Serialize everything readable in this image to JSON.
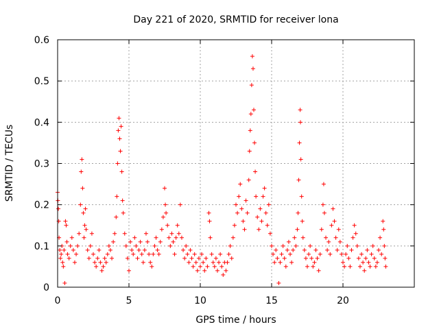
{
  "chart_data": {
    "type": "scatter",
    "title": "Day 221 of 2020, SRMTID for receiver lona",
    "xlabel": "GPS time / hours",
    "ylabel": "SRMTID / TECUs",
    "xlim": [
      0,
      25
    ],
    "ylim": [
      0,
      0.6
    ],
    "xticks": [
      0,
      5,
      10,
      15,
      20
    ],
    "yticks": [
      0,
      0.1,
      0.2,
      0.3,
      0.4,
      0.5,
      0.6
    ],
    "grid": true,
    "marker": "+",
    "color": "#ff0000",
    "series": [
      {
        "name": "SRMTID",
        "points": [
          [
            0.0,
            0.23
          ],
          [
            0.02,
            0.21
          ],
          [
            0.05,
            0.19
          ],
          [
            0.08,
            0.16
          ],
          [
            0.1,
            0.12
          ],
          [
            0.15,
            0.09
          ],
          [
            0.2,
            0.07
          ],
          [
            0.25,
            0.08
          ],
          [
            0.3,
            0.1
          ],
          [
            0.35,
            0.06
          ],
          [
            0.4,
            0.05
          ],
          [
            0.45,
            0.09
          ],
          [
            0.5,
            0.01
          ],
          [
            0.55,
            0.16
          ],
          [
            0.6,
            0.15
          ],
          [
            0.65,
            0.11
          ],
          [
            0.7,
            0.08
          ],
          [
            0.8,
            0.07
          ],
          [
            0.9,
            0.1
          ],
          [
            1.0,
            0.12
          ],
          [
            1.1,
            0.09
          ],
          [
            1.2,
            0.06
          ],
          [
            1.3,
            0.08
          ],
          [
            1.4,
            0.1
          ],
          [
            1.5,
            0.13
          ],
          [
            1.6,
            0.2
          ],
          [
            1.65,
            0.28
          ],
          [
            1.7,
            0.31
          ],
          [
            1.75,
            0.24
          ],
          [
            1.8,
            0.18
          ],
          [
            1.85,
            0.12
          ],
          [
            1.9,
            0.15
          ],
          [
            1.95,
            0.19
          ],
          [
            2.0,
            0.14
          ],
          [
            2.1,
            0.09
          ],
          [
            2.2,
            0.07
          ],
          [
            2.3,
            0.1
          ],
          [
            2.4,
            0.13
          ],
          [
            2.5,
            0.08
          ],
          [
            2.6,
            0.06
          ],
          [
            2.7,
            0.05
          ],
          [
            2.8,
            0.07
          ],
          [
            2.9,
            0.09
          ],
          [
            3.0,
            0.06
          ],
          [
            3.1,
            0.04
          ],
          [
            3.2,
            0.05
          ],
          [
            3.3,
            0.07
          ],
          [
            3.4,
            0.06
          ],
          [
            3.5,
            0.08
          ],
          [
            3.6,
            0.1
          ],
          [
            3.7,
            0.09
          ],
          [
            3.8,
            0.07
          ],
          [
            3.9,
            0.11
          ],
          [
            4.0,
            0.13
          ],
          [
            4.1,
            0.17
          ],
          [
            4.15,
            0.22
          ],
          [
            4.2,
            0.3
          ],
          [
            4.25,
            0.38
          ],
          [
            4.3,
            0.41
          ],
          [
            4.35,
            0.36
          ],
          [
            4.4,
            0.33
          ],
          [
            4.45,
            0.39
          ],
          [
            4.5,
            0.28
          ],
          [
            4.55,
            0.21
          ],
          [
            4.6,
            0.18
          ],
          [
            4.7,
            0.13
          ],
          [
            4.8,
            0.1
          ],
          [
            4.9,
            0.07
          ],
          [
            5.0,
            0.04
          ],
          [
            5.1,
            0.11
          ],
          [
            5.2,
            0.09
          ],
          [
            5.3,
            0.08
          ],
          [
            5.4,
            0.12
          ],
          [
            5.5,
            0.1
          ],
          [
            5.6,
            0.07
          ],
          [
            5.7,
            0.09
          ],
          [
            5.8,
            0.11
          ],
          [
            5.9,
            0.08
          ],
          [
            6.0,
            0.06
          ],
          [
            6.1,
            0.09
          ],
          [
            6.2,
            0.13
          ],
          [
            6.3,
            0.11
          ],
          [
            6.4,
            0.08
          ],
          [
            6.5,
            0.06
          ],
          [
            6.6,
            0.05
          ],
          [
            6.7,
            0.08
          ],
          [
            6.8,
            0.1
          ],
          [
            6.9,
            0.12
          ],
          [
            7.0,
            0.09
          ],
          [
            7.1,
            0.08
          ],
          [
            7.2,
            0.11
          ],
          [
            7.3,
            0.14
          ],
          [
            7.4,
            0.17
          ],
          [
            7.5,
            0.24
          ],
          [
            7.55,
            0.2
          ],
          [
            7.6,
            0.18
          ],
          [
            7.7,
            0.15
          ],
          [
            7.8,
            0.12
          ],
          [
            7.9,
            0.1
          ],
          [
            8.0,
            0.13
          ],
          [
            8.1,
            0.11
          ],
          [
            8.2,
            0.08
          ],
          [
            8.3,
            0.12
          ],
          [
            8.4,
            0.15
          ],
          [
            8.5,
            0.13
          ],
          [
            8.6,
            0.2
          ],
          [
            8.7,
            0.12
          ],
          [
            8.8,
            0.09
          ],
          [
            8.9,
            0.07
          ],
          [
            9.0,
            0.1
          ],
          [
            9.1,
            0.08
          ],
          [
            9.2,
            0.06
          ],
          [
            9.3,
            0.09
          ],
          [
            9.4,
            0.07
          ],
          [
            9.5,
            0.05
          ],
          [
            9.6,
            0.08
          ],
          [
            9.7,
            0.06
          ],
          [
            9.8,
            0.04
          ],
          [
            9.9,
            0.07
          ],
          [
            10.0,
            0.05
          ],
          [
            10.1,
            0.08
          ],
          [
            10.2,
            0.06
          ],
          [
            10.3,
            0.04
          ],
          [
            10.4,
            0.07
          ],
          [
            10.5,
            0.05
          ],
          [
            10.6,
            0.18
          ],
          [
            10.65,
            0.16
          ],
          [
            10.7,
            0.12
          ],
          [
            10.8,
            0.08
          ],
          [
            10.9,
            0.06
          ],
          [
            11.0,
            0.05
          ],
          [
            11.1,
            0.07
          ],
          [
            11.2,
            0.04
          ],
          [
            11.3,
            0.06
          ],
          [
            11.4,
            0.08
          ],
          [
            11.5,
            0.05
          ],
          [
            11.6,
            0.03
          ],
          [
            11.7,
            0.06
          ],
          [
            11.8,
            0.04
          ],
          [
            11.9,
            0.06
          ],
          [
            12.0,
            0.08
          ],
          [
            12.1,
            0.1
          ],
          [
            12.2,
            0.07
          ],
          [
            12.3,
            0.12
          ],
          [
            12.4,
            0.15
          ],
          [
            12.5,
            0.2
          ],
          [
            12.6,
            0.18
          ],
          [
            12.7,
            0.22
          ],
          [
            12.8,
            0.25
          ],
          [
            12.9,
            0.19
          ],
          [
            13.0,
            0.16
          ],
          [
            13.1,
            0.14
          ],
          [
            13.2,
            0.21
          ],
          [
            13.3,
            0.18
          ],
          [
            13.4,
            0.26
          ],
          [
            13.45,
            0.33
          ],
          [
            13.5,
            0.38
          ],
          [
            13.55,
            0.42
          ],
          [
            13.6,
            0.49
          ],
          [
            13.65,
            0.56
          ],
          [
            13.7,
            0.53
          ],
          [
            13.75,
            0.43
          ],
          [
            13.8,
            0.35
          ],
          [
            13.85,
            0.28
          ],
          [
            13.9,
            0.22
          ],
          [
            14.0,
            0.17
          ],
          [
            14.1,
            0.14
          ],
          [
            14.2,
            0.19
          ],
          [
            14.3,
            0.16
          ],
          [
            14.4,
            0.22
          ],
          [
            14.5,
            0.24
          ],
          [
            14.6,
            0.18
          ],
          [
            14.7,
            0.15
          ],
          [
            14.8,
            0.2
          ],
          [
            14.9,
            0.13
          ],
          [
            15.0,
            0.1
          ],
          [
            15.1,
            0.08
          ],
          [
            15.2,
            0.06
          ],
          [
            15.3,
            0.09
          ],
          [
            15.4,
            0.07
          ],
          [
            15.5,
            0.01
          ],
          [
            15.6,
            0.06
          ],
          [
            15.7,
            0.08
          ],
          [
            15.8,
            0.1
          ],
          [
            15.9,
            0.07
          ],
          [
            16.0,
            0.05
          ],
          [
            16.1,
            0.09
          ],
          [
            16.2,
            0.11
          ],
          [
            16.3,
            0.08
          ],
          [
            16.4,
            0.06
          ],
          [
            16.5,
            0.09
          ],
          [
            16.6,
            0.12
          ],
          [
            16.7,
            0.1
          ],
          [
            16.8,
            0.14
          ],
          [
            16.85,
            0.18
          ],
          [
            16.9,
            0.26
          ],
          [
            16.95,
            0.35
          ],
          [
            17.0,
            0.43
          ],
          [
            17.02,
            0.4
          ],
          [
            17.05,
            0.31
          ],
          [
            17.1,
            0.22
          ],
          [
            17.15,
            0.16
          ],
          [
            17.2,
            0.12
          ],
          [
            17.3,
            0.09
          ],
          [
            17.4,
            0.07
          ],
          [
            17.5,
            0.05
          ],
          [
            17.6,
            0.08
          ],
          [
            17.7,
            0.1
          ],
          [
            17.8,
            0.07
          ],
          [
            17.9,
            0.05
          ],
          [
            18.0,
            0.06
          ],
          [
            18.1,
            0.09
          ],
          [
            18.2,
            0.07
          ],
          [
            18.3,
            0.04
          ],
          [
            18.4,
            0.08
          ],
          [
            18.5,
            0.14
          ],
          [
            18.6,
            0.2
          ],
          [
            18.65,
            0.25
          ],
          [
            18.7,
            0.18
          ],
          [
            18.8,
            0.12
          ],
          [
            18.9,
            0.09
          ],
          [
            19.0,
            0.11
          ],
          [
            19.1,
            0.08
          ],
          [
            19.2,
            0.15
          ],
          [
            19.3,
            0.19
          ],
          [
            19.4,
            0.16
          ],
          [
            19.5,
            0.12
          ],
          [
            19.6,
            0.09
          ],
          [
            19.7,
            0.14
          ],
          [
            19.8,
            0.11
          ],
          [
            19.9,
            0.08
          ],
          [
            20.0,
            0.06
          ],
          [
            20.1,
            0.05
          ],
          [
            20.2,
            0.08
          ],
          [
            20.3,
            0.1
          ],
          [
            20.4,
            0.07
          ],
          [
            20.5,
            0.05
          ],
          [
            20.6,
            0.09
          ],
          [
            20.7,
            0.12
          ],
          [
            20.8,
            0.15
          ],
          [
            20.9,
            0.13
          ],
          [
            21.0,
            0.1
          ],
          [
            21.1,
            0.07
          ],
          [
            21.2,
            0.05
          ],
          [
            21.3,
            0.08
          ],
          [
            21.4,
            0.06
          ],
          [
            21.5,
            0.04
          ],
          [
            21.6,
            0.07
          ],
          [
            21.7,
            0.09
          ],
          [
            21.8,
            0.06
          ],
          [
            21.9,
            0.05
          ],
          [
            22.0,
            0.08
          ],
          [
            22.1,
            0.1
          ],
          [
            22.2,
            0.07
          ],
          [
            22.3,
            0.05
          ],
          [
            22.4,
            0.06
          ],
          [
            22.5,
            0.09
          ],
          [
            22.6,
            0.12
          ],
          [
            22.7,
            0.08
          ],
          [
            22.8,
            0.16
          ],
          [
            22.85,
            0.14
          ],
          [
            22.9,
            0.1
          ],
          [
            22.95,
            0.07
          ],
          [
            23.0,
            0.05
          ]
        ]
      }
    ]
  }
}
